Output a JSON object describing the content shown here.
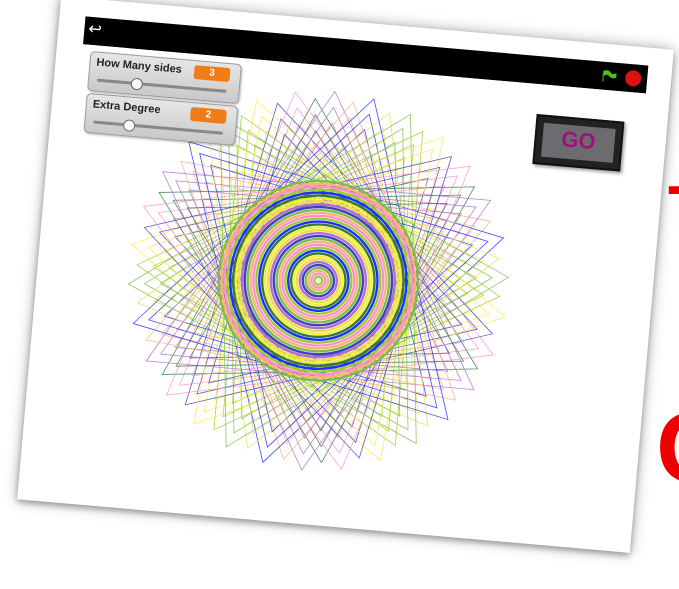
{
  "stage_top": {
    "back_icon": "↩",
    "green_flag_icon": "green-flag-icon",
    "stop_icon": "stop-sign-icon"
  },
  "monitors": [
    {
      "label": "How Many sides",
      "value": "3",
      "fraction": 0.3
    },
    {
      "label": "Extra Degree",
      "value": "2",
      "fraction": 0.27
    }
  ],
  "go_button": {
    "label": "GO"
  },
  "background_fragments": {
    "top": "T",
    "bottom": "C"
  },
  "colors": {
    "accent_orange": "#ee7d16",
    "go_text": "#a0107a",
    "stroke_palette": [
      "#9acd32",
      "#ffeb3b",
      "#3f3fbf",
      "#ff8fd0",
      "#2e7d32",
      "#b56ad8",
      "#ffb07a",
      "#1f2bff",
      "#e2e24a",
      "#79c04a"
    ]
  }
}
